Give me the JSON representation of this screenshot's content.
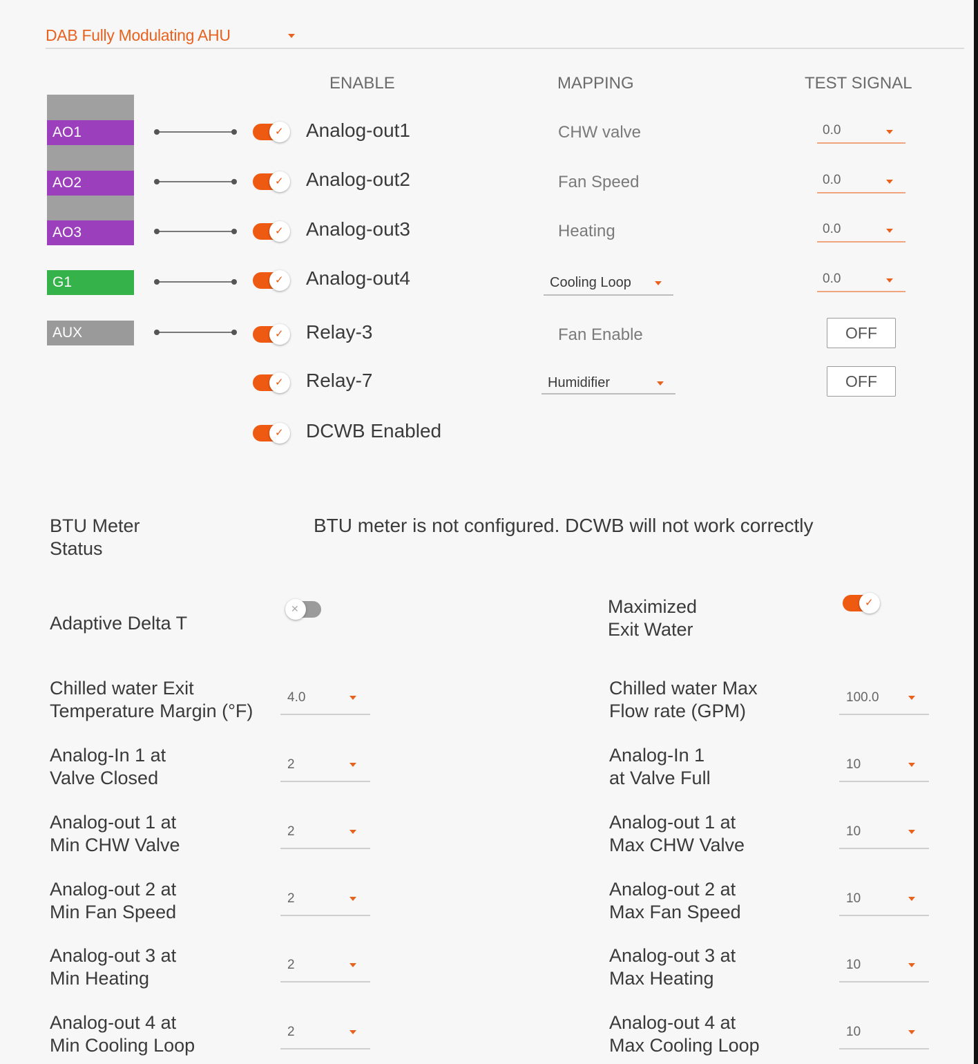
{
  "header": {
    "profile": "DAB Fully Modulating AHU"
  },
  "columns": {
    "enable": "ENABLE",
    "mapping": "MAPPING",
    "test_signal": "TEST SIGNAL"
  },
  "ports": [
    "AO1",
    "AO2",
    "AO3",
    "G1",
    "AUX"
  ],
  "outputs": [
    {
      "label": "Analog-out1",
      "mapping": "CHW valve",
      "test": "0.0",
      "enabled": true
    },
    {
      "label": "Analog-out2",
      "mapping": "Fan Speed",
      "test": "0.0",
      "enabled": true
    },
    {
      "label": "Analog-out3",
      "mapping": "Heating",
      "test": "0.0",
      "enabled": true
    },
    {
      "label": "Analog-out4",
      "mapping": "Cooling Loop",
      "test": "0.0",
      "enabled": true
    },
    {
      "label": "Relay-3",
      "mapping": "Fan Enable",
      "test": "OFF",
      "enabled": true
    },
    {
      "label": "Relay-7",
      "mapping": "Humidifier",
      "test": "OFF",
      "enabled": true
    },
    {
      "label": "DCWB Enabled",
      "enabled": true
    }
  ],
  "btu": {
    "label_line1": "BTU Meter",
    "label_line2": "Status",
    "message": "BTU meter is not configured. DCWB will not work correctly"
  },
  "toggles": {
    "adaptive_delta_t": {
      "label": "Adaptive Delta T",
      "on": false
    },
    "maximized_exit_water": {
      "line1": "Maximized",
      "line2": "Exit Water",
      "on": true
    }
  },
  "settings_left": [
    {
      "line1": "Chilled water Exit",
      "line2": "Temperature Margin (°F)",
      "value": "4.0"
    },
    {
      "line1": "Analog-In 1 at",
      "line2": "Valve Closed",
      "value": "2"
    },
    {
      "line1": "Analog-out 1 at",
      "line2": "Min CHW Valve",
      "value": "2"
    },
    {
      "line1": "Analog-out 2 at",
      "line2": "Min Fan Speed",
      "value": "2"
    },
    {
      "line1": "Analog-out 3 at",
      "line2": "Min Heating",
      "value": "2"
    },
    {
      "line1": "Analog-out 4 at",
      "line2": "Min Cooling Loop",
      "value": "2"
    }
  ],
  "settings_right": [
    {
      "line1": "Chilled water Max",
      "line2": "Flow rate (GPM)",
      "value": "100.0"
    },
    {
      "line1": "Analog-In 1",
      "line2": "at Valve Full",
      "value": "10"
    },
    {
      "line1": "Analog-out 1 at",
      "line2": "Max CHW Valve",
      "value": "10"
    },
    {
      "line1": "Analog-out 2 at",
      "line2": "Max Fan Speed",
      "value": "10"
    },
    {
      "line1": "Analog-out 3 at",
      "line2": "Max Heating",
      "value": "10"
    },
    {
      "line1": "Analog-out 4 at",
      "line2": "Max Cooling Loop",
      "value": "10"
    }
  ],
  "colors": {
    "accent": "#ee5a12",
    "ao": "#9c3fbd",
    "g": "#36b24a",
    "aux": "#9a9a9a"
  }
}
